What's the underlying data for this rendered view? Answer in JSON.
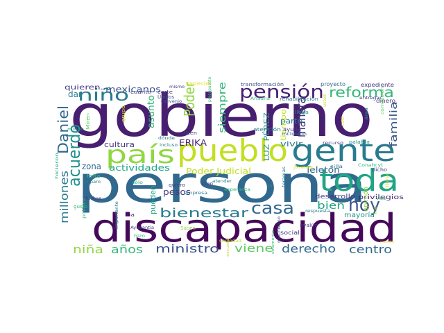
{
  "colors": {
    "dark_purple": "#46085a",
    "purple": "#481f70",
    "indigo": "#443a83",
    "slate_blue": "#3b528b",
    "steel_blue": "#31688e",
    "teal_blue": "#287c8e",
    "teal": "#21918c",
    "sea_green": "#20a486",
    "green": "#35b779",
    "light_green": "#5ec962",
    "lime": "#90d743",
    "yellow_green": "#c2df23",
    "yellow": "#e6e419"
  },
  "words": [
    {
      "text": "gobierno",
      "color": "purple"
    },
    {
      "text": "persona",
      "color": "steel_blue"
    },
    {
      "text": "discapacidad",
      "color": "dark_purple"
    },
    {
      "text": "pueblo",
      "color": "yellow_green"
    },
    {
      "text": "gente",
      "color": "teal_blue"
    },
    {
      "text": "toda",
      "color": "sea_green"
    },
    {
      "text": "país",
      "color": "lime"
    },
    {
      "text": "pensión",
      "color": "purple"
    },
    {
      "text": "reforma",
      "color": "green"
    },
    {
      "text": "niño",
      "color": "teal_blue"
    },
    {
      "text": "acuerdo",
      "color": "teal"
    },
    {
      "text": "Daniel",
      "color": "steel_blue"
    },
    {
      "text": "hoy",
      "color": "slate_blue"
    },
    {
      "text": "casa",
      "color": "steel_blue"
    },
    {
      "text": "bienestar",
      "color": "teal_blue"
    },
    {
      "text": "Poder",
      "color": "lime"
    },
    {
      "text": "siempre",
      "color": "green"
    },
    {
      "text": "manera",
      "color": "indigo"
    },
    {
      "text": "familia",
      "color": "slate_blue"
    },
    {
      "text": "millones",
      "color": "teal_blue"
    },
    {
      "text": "ministro",
      "color": "slate_blue"
    },
    {
      "text": "niña",
      "color": "lime"
    },
    {
      "text": "años",
      "color": "green"
    },
    {
      "text": "viene",
      "color": "light_green"
    },
    {
      "text": "derecho",
      "color": "steel_blue"
    },
    {
      "text": "centro",
      "color": "steel_blue"
    },
    {
      "text": "bien",
      "color": "sea_green"
    },
    {
      "text": "mexicanos",
      "color": "slate_blue"
    },
    {
      "text": "quieren.",
      "color": "indigo"
    },
    {
      "text": "dar",
      "color": "teal_blue"
    },
    {
      "text": "asunto",
      "color": "green"
    },
    {
      "text": "cultura",
      "color": "indigo"
    },
    {
      "text": "zona",
      "color": "steel_blue"
    },
    {
      "text": "actividades",
      "color": "sea_green"
    },
    {
      "text": "Poder Judicial",
      "color": "yellow_green"
    },
    {
      "text": "Teletón",
      "color": "steel_blue"
    },
    {
      "text": "ERIKA",
      "color": "purple"
    },
    {
      "text": "LUZ PÉREZ",
      "color": "teal"
    },
    {
      "text": "tiempo",
      "color": "yellow_green"
    },
    {
      "text": "parte",
      "color": "teal_blue"
    },
    {
      "text": "vivir",
      "color": "teal_blue"
    },
    {
      "text": "pesos",
      "color": "indigo"
    },
    {
      "text": "pueden",
      "color": "sea_green"
    },
    {
      "text": "desarrollo",
      "color": "indigo"
    },
    {
      "text": "privilegios",
      "color": "purple"
    },
    {
      "text": "mayoría",
      "color": "teal"
    },
    {
      "text": "opinión",
      "color": "lime"
    },
    {
      "text": "transformación",
      "color": "slate_blue"
    },
    {
      "text": "proyecto",
      "color": "steel_blue"
    },
    {
      "text": "expediente",
      "color": "indigo"
    },
    {
      "text": "Ariadna",
      "color": "green"
    },
    {
      "text": "rehabilitación",
      "color": "teal_blue"
    },
    {
      "text": "presupuesto",
      "color": "green"
    },
    {
      "text": "especial",
      "color": "yellow"
    },
    {
      "text": "mismo",
      "color": "indigo"
    },
    {
      "text": "cuánto",
      "color": "indigo"
    },
    {
      "text": "corte",
      "color": "indigo"
    },
    {
      "text": "Unidos",
      "color": "slate_blue"
    },
    {
      "text": "convenio",
      "color": "slate_blue"
    },
    {
      "text": "entregar",
      "color": "indigo"
    },
    {
      "text": "dinero",
      "color": "indigo"
    },
    {
      "text": "área",
      "color": "teal"
    },
    {
      "text": "llega",
      "color": "teal"
    },
    {
      "text": "ayuda",
      "color": "indigo"
    },
    {
      "text": "atención",
      "color": "teal_blue"
    },
    {
      "text": "inclusión",
      "color": "steel_blue"
    },
    {
      "text": "recurso",
      "color": "indigo"
    },
    {
      "text": "palabra",
      "color": "teal"
    },
    {
      "text": "dicen",
      "color": "indigo"
    },
    {
      "text": "dónde",
      "color": "teal_blue"
    },
    {
      "text": "incluso",
      "color": "teal_blue"
    },
    {
      "text": "millón",
      "color": "sea_green"
    },
    {
      "text": "Miren",
      "color": "light_green"
    },
    {
      "text": "grupo",
      "color": "yellow"
    },
    {
      "text": "falta",
      "color": "green"
    },
    {
      "text": "amparo",
      "color": "teal_blue"
    },
    {
      "text": "sólo",
      "color": "sea_green"
    },
    {
      "text": "quiero",
      "color": "indigo"
    },
    {
      "text": "empresa",
      "color": "teal_blue"
    },
    {
      "text": "esperanza",
      "color": "green"
    },
    {
      "text": "Muchas",
      "color": "indigo"
    },
    {
      "text": "gusto",
      "color": "green"
    },
    {
      "text": "política",
      "color": "green"
    },
    {
      "text": "importante",
      "color": "teal_blue"
    },
    {
      "text": "iba",
      "color": "purple"
    },
    {
      "text": "hizo",
      "color": "green"
    },
    {
      "text": "Ayudantía",
      "color": "indigo"
    },
    {
      "text": "Saben",
      "color": "lime"
    },
    {
      "text": "sociedad",
      "color": "yellow_green"
    },
    {
      "text": "social",
      "color": "indigo"
    },
    {
      "text": "muchísimo",
      "color": "slate_blue"
    },
    {
      "text": "avalúo",
      "color": "indigo"
    },
    {
      "text": "dicho",
      "color": "indigo"
    },
    {
      "text": "respuesta",
      "color": "teal_blue"
    },
    {
      "text": "vida",
      "color": "green"
    },
    {
      "text": "creo",
      "color": "indigo"
    },
    {
      "text": "atender",
      "color": "teal_blue"
    },
    {
      "text": "terapias",
      "color": "teal_blue"
    },
    {
      "text": "ir",
      "color": "teal"
    },
    {
      "text": "jóvenes",
      "color": "yellow"
    },
    {
      "text": "silla",
      "color": "steel_blue"
    },
    {
      "text": "Conahcyt",
      "color": "green"
    },
    {
      "text": "corrupción",
      "color": "light_green"
    },
    {
      "text": "casi",
      "color": "yellow"
    },
    {
      "text": "hicieron",
      "color": "sea_green"
    },
    {
      "text": "solamente",
      "color": "green"
    },
    {
      "text": "escuela",
      "color": "yellow_green"
    },
    {
      "text": "usted",
      "color": "yellow_green"
    },
    {
      "text": "mundo",
      "color": "yellow"
    },
    {
      "text": "fue",
      "color": "lime"
    },
    {
      "text": "tiene",
      "color": "yellow_green"
    }
  ]
}
